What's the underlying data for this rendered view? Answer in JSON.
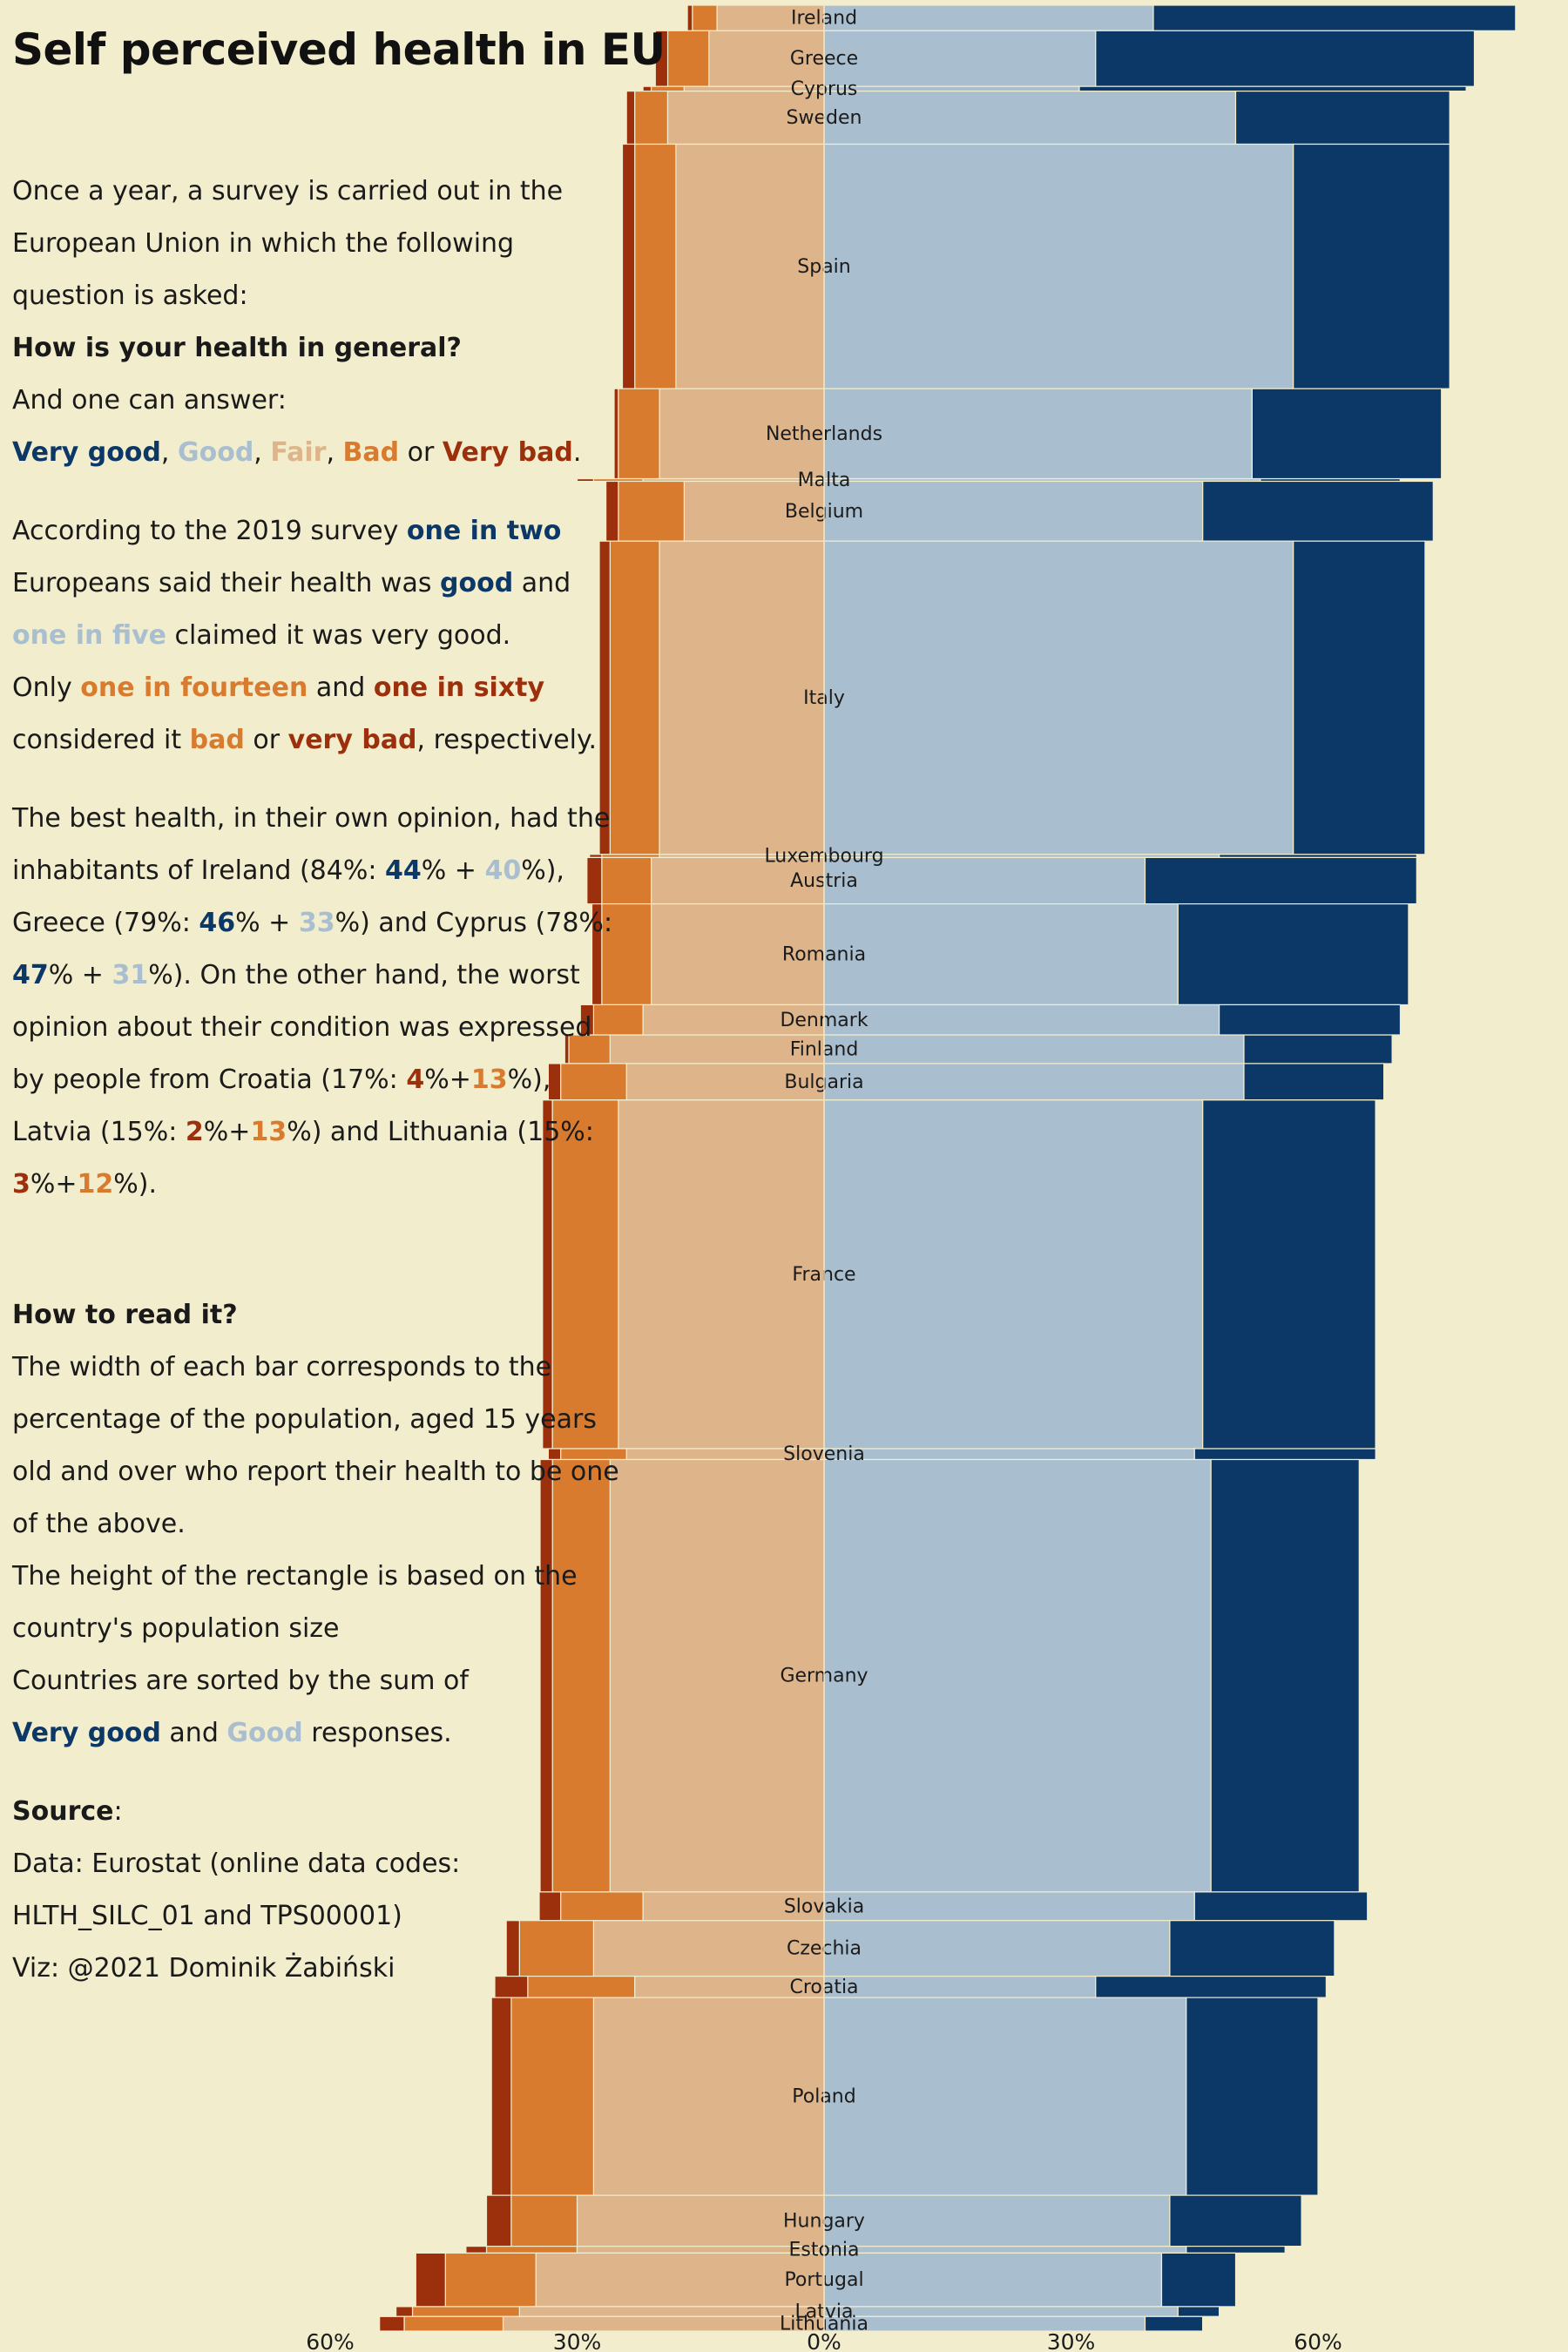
{
  "title": "Self perceived health in EU",
  "intro": {
    "line1": "Once a year, a survey is carried out in the European Union in which the following question is asked:",
    "question": "How is your health in general?",
    "answer_lead": "And one can answer:",
    "answers": {
      "very_good": "Very good",
      "good": "Good",
      "fair": "Fair",
      "bad": "Bad",
      "or": "or",
      "very_bad": "Very bad",
      "sep": ", ",
      "end": "."
    }
  },
  "survey": {
    "t1": "According to the 2019 survey ",
    "one_in_two": "one in two",
    "t2": " Europeans said their health was ",
    "good_word": "good",
    "t3": " and ",
    "one_in_five": "one in five",
    "t4": " claimed it was very good.",
    "t5": "Only ",
    "one_in_fourteen": "one in fourteen",
    "t6": " and ",
    "one_in_sixty": "one in sixty",
    "t7": " considered it ",
    "bad_word": "bad",
    "t8": " or ",
    "very_bad_word": "very bad",
    "t9": ", respectively."
  },
  "best_worst": {
    "t1": "The best health, in their own opinion, had the inhabitants of Ireland (84%: ",
    "ie_vg": "44",
    "t2": "% + ",
    "ie_g": "40",
    "t3": "%), Greece (79%: ",
    "gr_vg": "46",
    "t4": "% + ",
    "gr_g": "33",
    "t5": "%) and Cyprus (78%: ",
    "cy_vg": "47",
    "t6": "% + ",
    "cy_g": "31",
    "t7": "%). On the other hand, the worst opinion about their condition was expressed by people from Croatia (17%: ",
    "hr_vb": "4",
    "t8": "%+",
    "hr_b": "13",
    "t9": "%), Latvia (15%: ",
    "lv_vb": "2",
    "t10": "%+",
    "lv_b": "13",
    "t11": "%) and Lithuania (15%: ",
    "lt_vb": "3",
    "t12": "%+",
    "lt_b": "12",
    "t13": "%)."
  },
  "how_to": {
    "heading": "How to read it?",
    "p1": "The width of each bar corresponds to the percentage of the population, aged 15 years old and over who report their health to be one of the above.",
    "p2": "The height of the rectangle is based on the country's population size",
    "p3": "Countries are sorted by the sum of",
    "very_good": "Very good",
    "and": " and ",
    "good": "Good",
    "responses": " responses."
  },
  "source": {
    "label": "Source",
    "colon": ":",
    "data_line": "Data: Eurostat (online data codes: HLTH_SILC_01 and TPS00001)",
    "viz": "Viz: @2021 Dominik Żabiński"
  },
  "colors": {
    "background": "#f2edcc",
    "very_good": "#0c3868",
    "good": "#a9bfd0",
    "fair": "#deb48a",
    "bad": "#d97b2e",
    "very_bad": "#9c2f0c"
  },
  "chart_data": {
    "type": "bar",
    "subtype": "diverging variable-height stacked bar (Marimekko style)",
    "categories": [
      "Ireland",
      "Greece",
      "Cyprus",
      "Sweden",
      "Spain",
      "Netherlands",
      "Malta",
      "Belgium",
      "Italy",
      "Luxembourg",
      "Austria",
      "Romania",
      "Denmark",
      "Finland",
      "Bulgaria",
      "France",
      "Slovenia",
      "Germany",
      "Slovakia",
      "Czechia",
      "Croatia",
      "Poland",
      "Hungary",
      "Estonia",
      "Portugal",
      "Latvia",
      "Lithuania"
    ],
    "population_millions": [
      4.9,
      10.7,
      0.9,
      10.2,
      47.0,
      17.3,
      0.5,
      11.5,
      60.2,
      0.6,
      8.9,
      19.4,
      5.8,
      5.5,
      7.0,
      67.0,
      2.1,
      83.1,
      5.5,
      10.7,
      4.1,
      38.0,
      9.8,
      1.3,
      10.3,
      1.9,
      2.8
    ],
    "series": [
      {
        "name": "Very good",
        "values": [
          44,
          46,
          47,
          26,
          19,
          23,
          17,
          28,
          16,
          24,
          33,
          28,
          22,
          18,
          17,
          21,
          22,
          18,
          21,
          20,
          28,
          16,
          16,
          12,
          9,
          5,
          7
        ]
      },
      {
        "name": "Good",
        "values": [
          40,
          33,
          31,
          50,
          57,
          52,
          53,
          46,
          57,
          48,
          39,
          43,
          48,
          51,
          51,
          46,
          45,
          47,
          45,
          42,
          33,
          44,
          42,
          44,
          41,
          43,
          39
        ]
      },
      {
        "name": "Fair",
        "values": [
          13,
          14,
          17,
          19,
          18,
          20,
          22,
          17,
          20,
          20,
          21,
          21,
          22,
          26,
          24,
          25,
          24,
          26,
          22,
          28,
          23,
          28,
          30,
          30,
          35,
          37,
          39
        ]
      },
      {
        "name": "Bad",
        "values": [
          3,
          5,
          4,
          4,
          5,
          5,
          6,
          8,
          6,
          7,
          6,
          6,
          6,
          5,
          8,
          8,
          8,
          7,
          10,
          9,
          13,
          10,
          8,
          11,
          11,
          13,
          12
        ]
      },
      {
        "name": "Very bad",
        "values": [
          0.6,
          1.5,
          1.0,
          1.0,
          1.5,
          0.5,
          2.0,
          1.5,
          1.3,
          1.5,
          1.8,
          1.2,
          1.6,
          0.5,
          1.5,
          1.2,
          1.5,
          1.5,
          2.6,
          1.6,
          4,
          2.4,
          3,
          2.5,
          3.6,
          2,
          3
        ]
      }
    ],
    "positive_series": [
      "Good",
      "Very good"
    ],
    "negative_series": [
      "Fair",
      "Bad",
      "Very bad"
    ],
    "x_axis": {
      "ticks": [
        -60,
        -30,
        0,
        30,
        60
      ],
      "tick_labels": [
        "60%",
        "30%",
        "0%",
        "30%",
        "60%"
      ],
      "xlim": [
        -65,
        88
      ]
    },
    "grid": false,
    "legend": "none"
  }
}
